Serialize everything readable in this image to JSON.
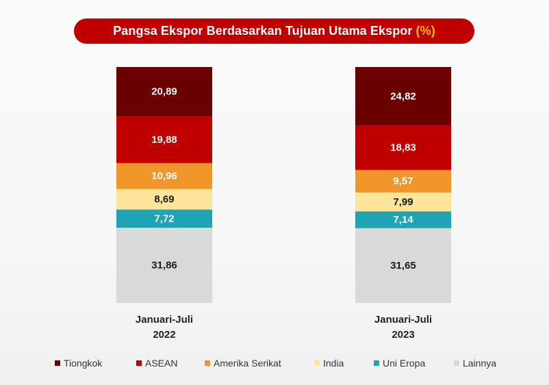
{
  "title": {
    "text": "Pangsa Ekspor Berdasarkan Tujuan Utama Ekspor",
    "unit": "(%)"
  },
  "colors": {
    "Tiongkok": "#6b0000",
    "ASEAN": "#c00000",
    "Amerika Serikat": "#f0962a",
    "India": "#fbe59a",
    "Uni Eropa": "#1fa4b6",
    "Lainnya": "#d9d9d9",
    "title_bg": "#c00000",
    "title_accent": "#ffc000"
  },
  "chart_data": {
    "type": "bar",
    "stacked": true,
    "normalized": true,
    "categories": [
      [
        "Januari-Juli",
        "2022"
      ],
      [
        "Januari-Juli",
        "2023"
      ]
    ],
    "series": [
      {
        "name": "Tiongkok",
        "values": [
          20.89,
          24.82
        ],
        "labels": [
          "20,89",
          "24,82"
        ]
      },
      {
        "name": "ASEAN",
        "values": [
          19.88,
          18.83
        ],
        "labels": [
          "19,88",
          "18,83"
        ]
      },
      {
        "name": "Amerika Serikat",
        "values": [
          10.96,
          9.57
        ],
        "labels": [
          "10,96",
          "9,57"
        ]
      },
      {
        "name": "India",
        "values": [
          8.69,
          7.99
        ],
        "labels": [
          "8,69",
          "7,99"
        ]
      },
      {
        "name": "Uni Eropa",
        "values": [
          7.72,
          7.14
        ],
        "labels": [
          "7,72",
          "7,14"
        ]
      },
      {
        "name": "Lainnya",
        "values": [
          31.86,
          31.65
        ],
        "labels": [
          "31,86",
          "31,65"
        ]
      }
    ],
    "legend_position": "bottom",
    "grid": false
  },
  "legend": [
    {
      "label": "Tiongkok",
      "color": "#6b0000"
    },
    {
      "label": "ASEAN",
      "color": "#c00000"
    },
    {
      "label": "Amerika Serikat",
      "color": "#f0962a"
    },
    {
      "label": "India",
      "color": "#fbe59a"
    },
    {
      "label": "Uni Eropa",
      "color": "#1fa4b6"
    },
    {
      "label": "Lainnya",
      "color": "#d9d9d9"
    }
  ]
}
